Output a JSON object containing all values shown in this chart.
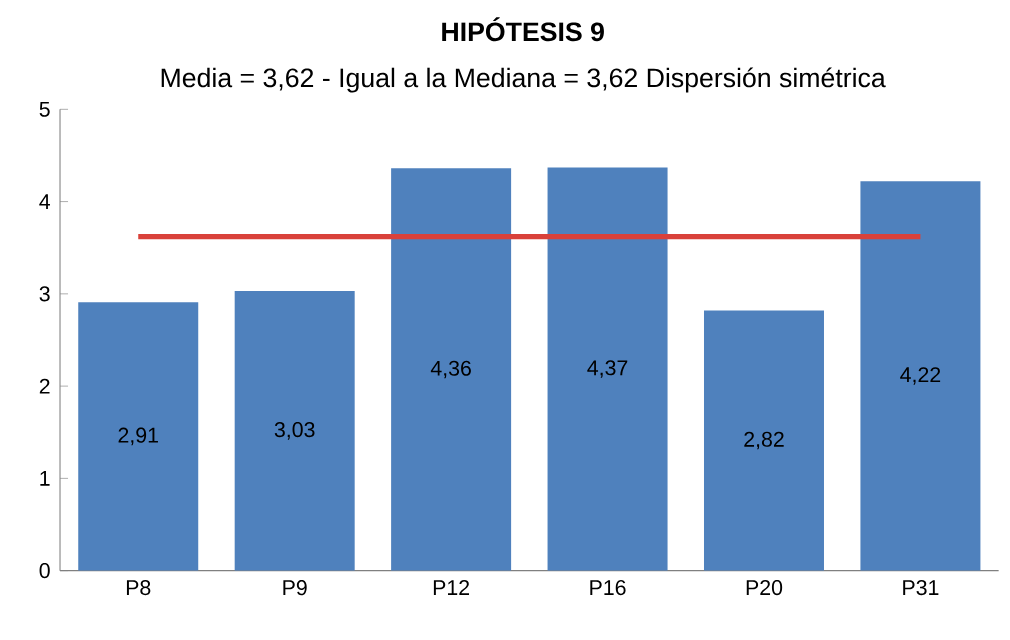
{
  "chart_data": {
    "type": "bar",
    "title": "HIPÓTESIS 9",
    "subtitle": "Media = 3,62 - Igual a la Mediana = 3,62 Dispersión simétrica",
    "categories": [
      "P8",
      "P9",
      "P12",
      "P16",
      "P20",
      "P31"
    ],
    "values": [
      2.91,
      3.03,
      4.36,
      4.37,
      2.82,
      4.22
    ],
    "value_labels": [
      "2,91",
      "3,03",
      "4,36",
      "4,37",
      "2,82",
      "4,22"
    ],
    "color": "#4f81bd",
    "ylim": [
      0,
      5
    ],
    "yticks": [
      0,
      1,
      2,
      3,
      4,
      5
    ],
    "ref_lines": [
      {
        "axis": "y",
        "value": 3.62,
        "color": "#d9413a"
      }
    ],
    "grid": false
  }
}
